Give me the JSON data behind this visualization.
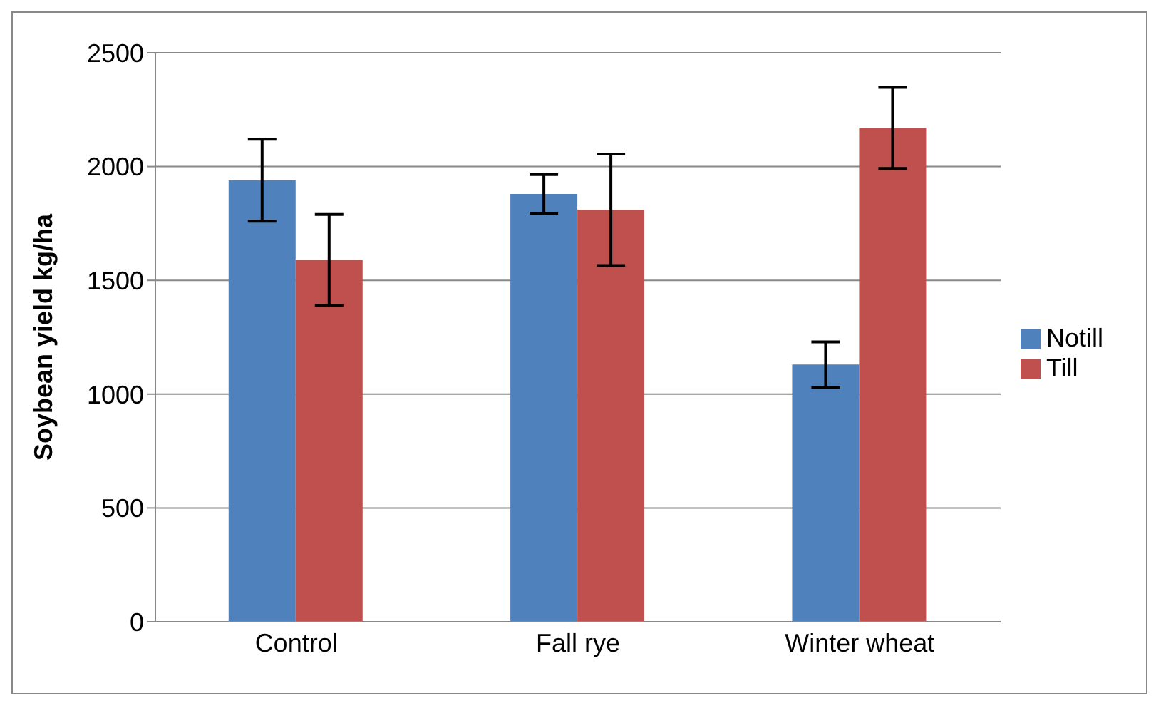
{
  "chart_data": {
    "type": "bar",
    "ylabel": "Soybean yield kg/ha",
    "categories": [
      "Control",
      "Fall rye",
      "Winter wheat"
    ],
    "series": [
      {
        "name": "Notill",
        "color": "#4f81bd",
        "values": [
          1940,
          1880,
          1130
        ],
        "errors": [
          180,
          85,
          100
        ]
      },
      {
        "name": "Till",
        "color": "#c0504d",
        "values": [
          1590,
          1810,
          2170
        ],
        "errors": [
          200,
          245,
          178
        ]
      }
    ],
    "ylim": [
      0,
      2500
    ],
    "yticks": [
      0,
      500,
      1000,
      1500,
      2000,
      2500
    ],
    "grid": "y",
    "legend": "right"
  }
}
